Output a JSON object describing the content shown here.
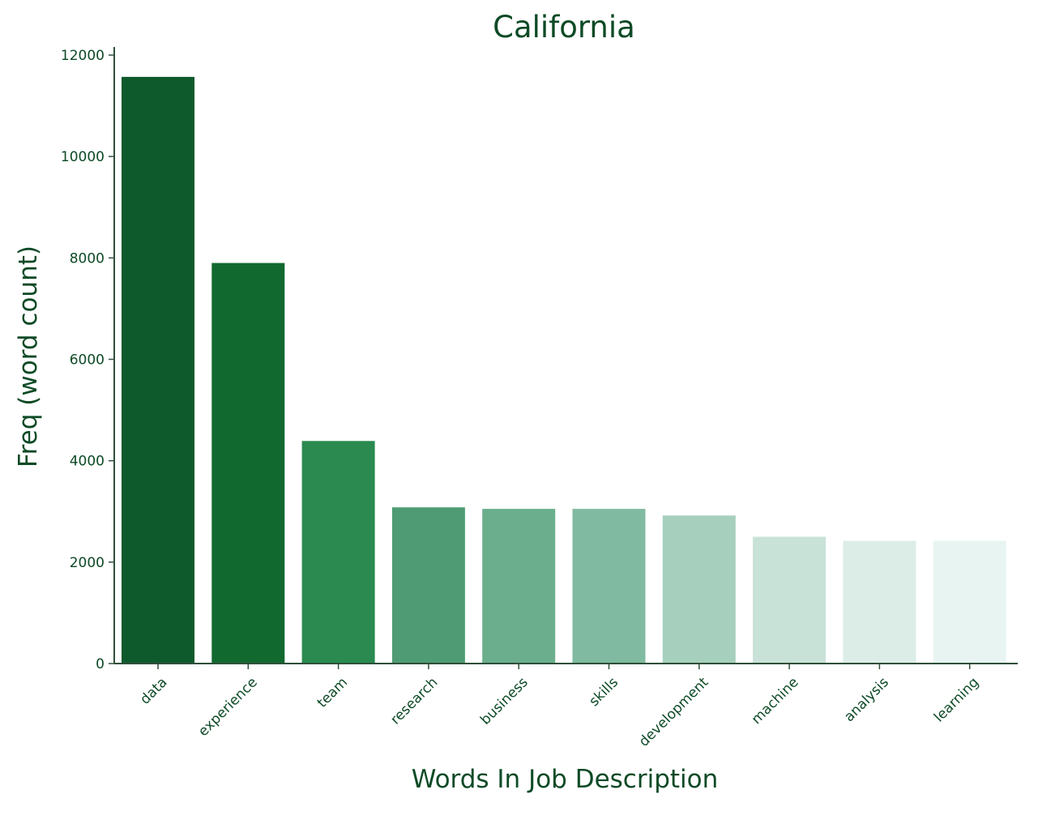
{
  "chart_data": {
    "type": "bar",
    "title": "California",
    "xlabel": "Words In Job Description",
    "ylabel": "Freq (word count)",
    "categories": [
      "data",
      "experience",
      "team",
      "research",
      "business",
      "skills",
      "development",
      "machine",
      "analysis",
      "learning"
    ],
    "values": [
      11570,
      7900,
      4390,
      3080,
      3050,
      3050,
      2920,
      2500,
      2420,
      2420
    ],
    "ylim": [
      0,
      12000
    ],
    "yticks": [
      0,
      2000,
      4000,
      6000,
      8000,
      10000,
      12000
    ],
    "ytick_labels": [
      "0",
      "2000",
      "4000",
      "6000",
      "8000",
      "10000",
      "12000"
    ],
    "grid": false,
    "colors": {
      "text": "#0d4a26",
      "axis": "#2f4f3a",
      "bars": [
        "#0e5a2c",
        "#12692f",
        "#2a8a50",
        "#4f9c74",
        "#6aae8d",
        "#80baa0",
        "#a6d0bd",
        "#c9e2d8",
        "#dcede7",
        "#e7f4f1"
      ]
    }
  }
}
